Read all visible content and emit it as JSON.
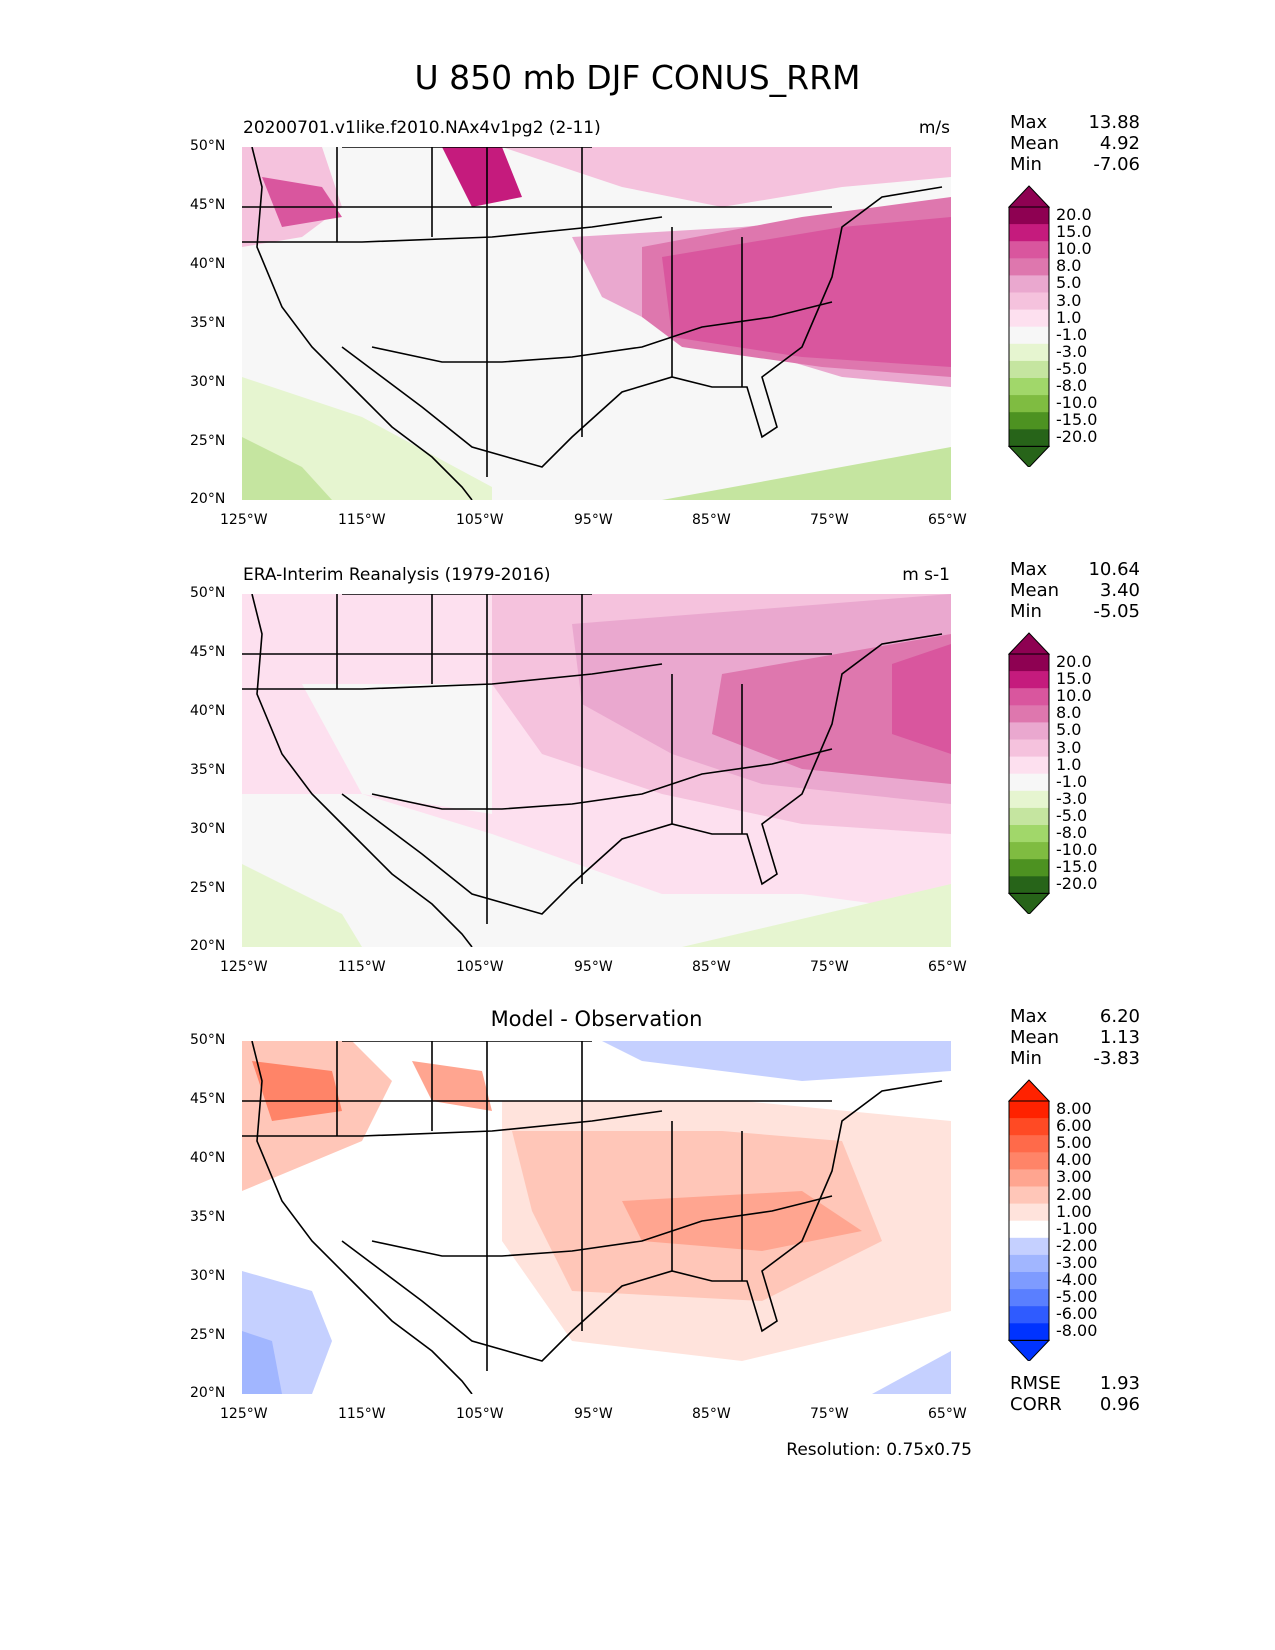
{
  "title": "U 850 mb DJF CONUS_RRM",
  "lon_ticks": [
    "125°W",
    "115°W",
    "105°W",
    "95°W",
    "85°W",
    "75°W",
    "65°W"
  ],
  "lat_ticks": [
    "50°N",
    "45°N",
    "40°N",
    "35°N",
    "30°N",
    "25°N",
    "20°N"
  ],
  "panels": [
    {
      "left_title": "20200701.v1like.f2010.NAx4v1pg2 (2-11)",
      "right_title": "m/s",
      "stats": {
        "max_label": "Max",
        "max": "13.88",
        "mean_label": "Mean",
        "mean": "4.92",
        "min_label": "Min",
        "min": "-7.06"
      },
      "colorbar_labels": [
        "20.0",
        "15.0",
        "10.0",
        "8.0",
        "5.0",
        "3.0",
        "1.0",
        "-1.0",
        "-3.0",
        "-5.0",
        "-8.0",
        "-10.0",
        "-15.0",
        "-20.0"
      ]
    },
    {
      "left_title": "ERA-Interim Reanalysis (1979-2016)",
      "right_title": "m s-1",
      "stats": {
        "max_label": "Max",
        "max": "10.64",
        "mean_label": "Mean",
        "mean": "3.40",
        "min_label": "Min",
        "min": "-5.05"
      },
      "colorbar_labels": [
        "20.0",
        "15.0",
        "10.0",
        "8.0",
        "5.0",
        "3.0",
        "1.0",
        "-1.0",
        "-3.0",
        "-5.0",
        "-8.0",
        "-10.0",
        "-15.0",
        "-20.0"
      ]
    },
    {
      "center_title": "Model - Observation",
      "stats": {
        "max_label": "Max",
        "max": "6.20",
        "mean_label": "Mean",
        "mean": "1.13",
        "min_label": "Min",
        "min": "-3.83"
      },
      "colorbar_labels": [
        "8.00",
        "6.00",
        "5.00",
        "4.00",
        "3.00",
        "2.00",
        "1.00",
        "-1.00",
        "-2.00",
        "-3.00",
        "-4.00",
        "-5.00",
        "-6.00",
        "-8.00"
      ],
      "rmse_label": "RMSE",
      "rmse": "1.93",
      "corr_label": "CORR",
      "corr": "0.96"
    }
  ],
  "footer": "Resolution: 0.75x0.75",
  "colors": {
    "piyg": [
      "#276419",
      "#4d9221",
      "#7fbc41",
      "#a1d76a",
      "#c5e5a0",
      "#e6f5d0",
      "#f7f7f7",
      "#fde0ef",
      "#f5c2dd",
      "#eaa8cf",
      "#de77ae",
      "#d9569e",
      "#c51b7d",
      "#8e0152"
    ],
    "bwr": [
      "#0033ff",
      "#2f5bff",
      "#5a7fff",
      "#7e9bff",
      "#a1b6ff",
      "#c5d0ff",
      "#ffffff",
      "#ffe3dc",
      "#ffc6b8",
      "#ffa590",
      "#ff8468",
      "#ff6a4a",
      "#ff4a24",
      "#ff2200"
    ]
  }
}
